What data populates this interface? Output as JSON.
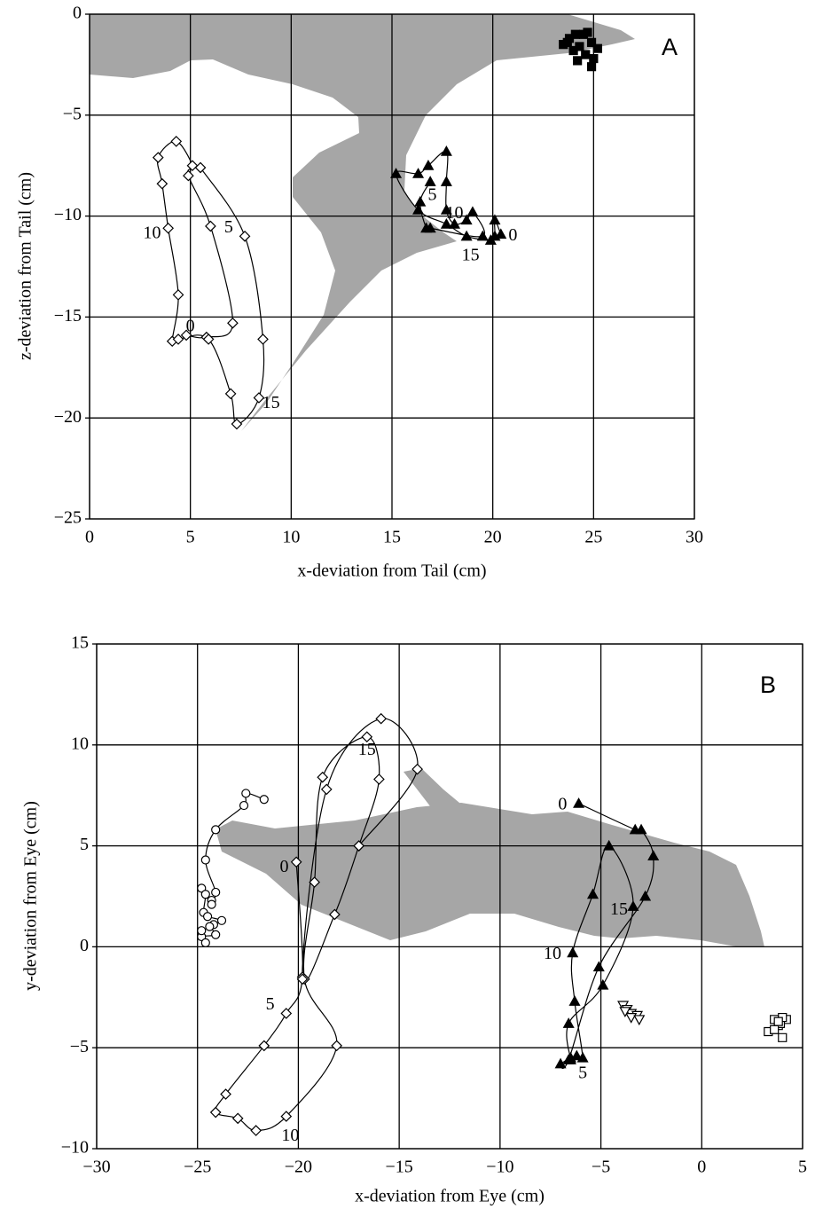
{
  "chart_data": [
    {
      "type": "scatter",
      "label": "A",
      "x_label": "x-deviation from Tail (cm)",
      "y_label": "z-deviation from Tail (cm)",
      "xlim": [
        0,
        30
      ],
      "ylim": [
        -25,
        0
      ],
      "xticks": [
        0,
        5,
        10,
        15,
        20,
        25,
        30
      ],
      "yticks": [
        0,
        {
          "value": -5,
          "label": "−5"
        },
        {
          "value": -10,
          "label": "−10"
        },
        {
          "value": -15,
          "label": "−15"
        },
        {
          "value": -20,
          "label": "−20"
        },
        {
          "value": -25,
          "label": "−25"
        }
      ],
      "grid": true,
      "series": [
        {
          "marker": "diamond",
          "color": "#000000",
          "fill": "#ffffff",
          "line": true,
          "x": [
            4.8,
            5.8,
            7.1,
            6.0,
            4.9,
            5.1,
            4.3,
            3.4,
            3.6,
            3.9,
            4.4,
            4.1,
            4.4,
            5.9,
            7.0,
            7.3,
            8.4,
            8.6,
            7.7,
            5.5
          ],
          "y": [
            -15.9,
            -16.0,
            -15.3,
            -10.5,
            -8.0,
            -7.5,
            -6.3,
            -7.1,
            -8.4,
            -10.6,
            -13.9,
            -16.2,
            -16.1,
            -16.1,
            -18.8,
            -20.3,
            -19.0,
            -16.1,
            -11.0,
            -7.6
          ]
        },
        {
          "marker": "triangle",
          "color": "#000000",
          "fill": "#000000",
          "line": true,
          "x": [
            20.4,
            20.1,
            20.1,
            19.9,
            18.7,
            17.7,
            16.3,
            15.2,
            16.3,
            16.8,
            17.7,
            17.7,
            17.7,
            18.1,
            18.7,
            19.0,
            19.5,
            16.9,
            16.7,
            16.4,
            16.9
          ],
          "y": [
            -10.9,
            -10.2,
            -11.0,
            -11.2,
            -11.0,
            -10.4,
            -9.7,
            -7.9,
            -7.9,
            -7.5,
            -6.8,
            -8.3,
            -9.7,
            -10.4,
            -10.2,
            -9.8,
            -11.0,
            -10.6,
            -10.6,
            -9.3,
            -8.3
          ]
        },
        {
          "marker": "square",
          "color": "#000000",
          "fill": "#000000",
          "line": false,
          "x": [
            23.5,
            23.8,
            24.0,
            24.2,
            24.5,
            24.7,
            24.9,
            25.2,
            24.9,
            24.3,
            23.7,
            24.6,
            24.1,
            25.0
          ],
          "y": [
            -1.5,
            -1.2,
            -1.8,
            -2.3,
            -1.0,
            -0.9,
            -1.4,
            -1.7,
            -2.6,
            -1.6,
            -1.4,
            -2.0,
            -1.0,
            -2.2
          ]
        }
      ],
      "annotations": [
        {
          "text": "0",
          "x": 5.0,
          "y": -15.5
        },
        {
          "text": "5",
          "x": 6.9,
          "y": -10.6
        },
        {
          "text": "10",
          "x": 3.1,
          "y": -10.9
        },
        {
          "text": "15",
          "x": 9.0,
          "y": -19.3
        },
        {
          "text": "5",
          "x": 17.0,
          "y": -9.0
        },
        {
          "text": "10",
          "x": 18.1,
          "y": -9.9
        },
        {
          "text": "0",
          "x": 21.0,
          "y": -11.0
        },
        {
          "text": "15",
          "x": 18.9,
          "y": -12.0
        }
      ]
    },
    {
      "type": "scatter",
      "label": "B",
      "x_label": "x-deviation from Eye (cm)",
      "y_label": "y-deviation from Eye (cm)",
      "xlim": [
        -30,
        5
      ],
      "ylim": [
        -10,
        15
      ],
      "xticks": [
        {
          "value": -30,
          "label": "−30"
        },
        {
          "value": -25,
          "label": "−25"
        },
        {
          "value": -20,
          "label": "−20"
        },
        {
          "value": -15,
          "label": "−15"
        },
        {
          "value": -10,
          "label": "−10"
        },
        {
          "value": -5,
          "label": "−5"
        },
        0,
        5
      ],
      "yticks": [
        {
          "value": -10,
          "label": "−10"
        },
        {
          "value": -5,
          "label": "−5"
        },
        0,
        5,
        10,
        15
      ],
      "grid": true,
      "series": [
        {
          "marker": "circle",
          "color": "#000000",
          "fill": "#ffffff",
          "line": true,
          "x": [
            -21.7,
            -22.6,
            -22.7,
            -24.1,
            -24.6,
            -24.1,
            -24.3,
            -24.3,
            -24.8,
            -24.6,
            -24.7,
            -24.5,
            -23.8,
            -24.2,
            -24.4,
            -24.1,
            -24.8,
            -24.6,
            -24.8
          ],
          "y": [
            7.3,
            7.6,
            7.0,
            5.8,
            4.3,
            2.7,
            2.3,
            2.1,
            2.9,
            2.6,
            1.7,
            1.5,
            1.3,
            1.1,
            1.0,
            0.6,
            0.5,
            0.2,
            0.8
          ]
        },
        {
          "marker": "diamond",
          "color": "#000000",
          "fill": "#ffffff",
          "line": true,
          "x": [
            -20.1,
            -19.8,
            -20.6,
            -21.7,
            -23.6,
            -24.1,
            -23.0,
            -22.1,
            -20.6,
            -18.1,
            -19.7,
            -19.2,
            -18.8,
            -16.6,
            -16.0,
            -17.0,
            -18.2,
            -19.8,
            -18.6,
            -15.9,
            -14.1,
            -17.0
          ],
          "y": [
            4.2,
            -1.5,
            -3.3,
            -4.9,
            -7.3,
            -8.2,
            -8.5,
            -9.1,
            -8.4,
            -4.9,
            -1.6,
            3.2,
            8.4,
            10.4,
            8.3,
            5.0,
            1.6,
            -1.6,
            7.8,
            11.3,
            8.8,
            5.0
          ]
        },
        {
          "marker": "triangle",
          "color": "#000000",
          "fill": "#000000",
          "line": true,
          "x": [
            -6.1,
            -3.3,
            -3.0,
            -2.4,
            -2.8,
            -5.1,
            -6.6,
            -7.0,
            -6.5,
            -6.2,
            -5.9,
            -6.3,
            -6.4,
            -5.4,
            -4.6,
            -3.4,
            -4.9,
            -6.6,
            -6.5
          ],
          "y": [
            7.1,
            5.8,
            5.8,
            4.5,
            2.5,
            -1.0,
            -5.6,
            -5.8,
            -5.5,
            -5.4,
            -5.5,
            -2.7,
            -0.3,
            2.6,
            5.0,
            2.0,
            -1.9,
            -3.8,
            -5.6
          ]
        },
        {
          "marker": "down-triangle",
          "color": "#000000",
          "fill": "#ffffff",
          "line": false,
          "x": [
            -3.9,
            -3.7,
            -3.5,
            -3.2,
            -3.5,
            -3.1,
            -3.8
          ],
          "y": [
            -2.9,
            -3.1,
            -3.3,
            -3.4,
            -3.5,
            -3.6,
            -3.2
          ]
        },
        {
          "marker": "square",
          "color": "#000000",
          "fill": "#ffffff",
          "line": false,
          "x": [
            3.3,
            3.6,
            3.8,
            4.0,
            4.2,
            3.9,
            3.6,
            4.0,
            3.8
          ],
          "y": [
            -4.2,
            -3.6,
            -3.9,
            -4.5,
            -3.6,
            -3.8,
            -4.1,
            -3.5,
            -3.7
          ]
        }
      ],
      "annotations": [
        {
          "text": "0",
          "x": -20.7,
          "y": 3.9
        },
        {
          "text": "5",
          "x": -21.4,
          "y": -2.9
        },
        {
          "text": "10",
          "x": -20.4,
          "y": -9.4
        },
        {
          "text": "15",
          "x": -16.6,
          "y": 9.7
        },
        {
          "text": "0",
          "x": -6.9,
          "y": 7.0
        },
        {
          "text": "10",
          "x": -7.4,
          "y": -0.4
        },
        {
          "text": "15",
          "x": -4.1,
          "y": 1.8
        },
        {
          "text": "5",
          "x": -5.9,
          "y": -6.3
        }
      ]
    }
  ]
}
